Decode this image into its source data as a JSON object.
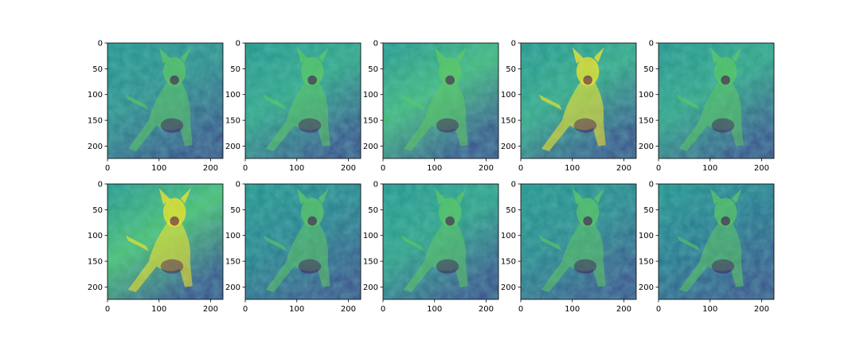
{
  "chart_data": {
    "type": "heatmap",
    "description_type": "image grid",
    "rows": 2,
    "cols": 5,
    "colormap": "viridis",
    "colormap_stops": [
      "#440154",
      "#3b528b",
      "#21918c",
      "#5ec962",
      "#fde725"
    ],
    "image_size": [
      224,
      224
    ],
    "xlim": [
      0,
      224
    ],
    "ylim": [
      224,
      0
    ],
    "xticks": [
      0,
      100,
      200
    ],
    "yticks": [
      0,
      50,
      100,
      150,
      200
    ],
    "panels": [
      {
        "row": 0,
        "col": 0,
        "tone": "#2f8a8c"
      },
      {
        "row": 0,
        "col": 1,
        "tone": "#31a487"
      },
      {
        "row": 0,
        "col": 2,
        "tone": "#43b77a"
      },
      {
        "row": 0,
        "col": 3,
        "tone": "#35a785"
      },
      {
        "row": 0,
        "col": 4,
        "tone": "#32a286"
      },
      {
        "row": 1,
        "col": 0,
        "tone": "#4cbf6e"
      },
      {
        "row": 1,
        "col": 1,
        "tone": "#287f8e"
      },
      {
        "row": 1,
        "col": 2,
        "tone": "#2fa088"
      },
      {
        "row": 1,
        "col": 3,
        "tone": "#2a858d"
      },
      {
        "row": 1,
        "col": 4,
        "tone": "#27748e"
      }
    ]
  }
}
